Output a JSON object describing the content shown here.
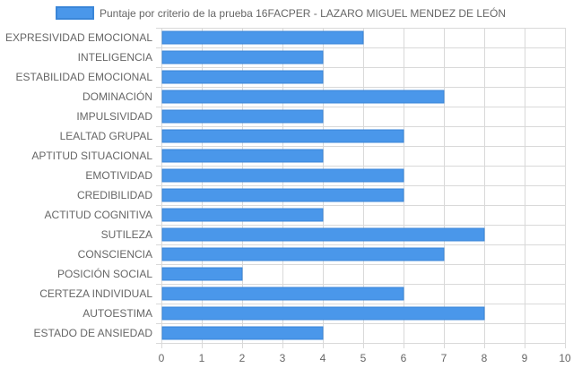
{
  "chart_data": {
    "type": "bar",
    "orientation": "horizontal",
    "legend_position": "top",
    "grid": true,
    "colors": {
      "bar_fill": "#4a97ea",
      "bar_stroke": "#3a86d8",
      "grid": "#d9d9d9",
      "text": "#666666"
    },
    "categories": [
      "EXPRESIVIDAD EMOCIONAL",
      "INTELIGENCIA",
      "ESTABILIDAD EMOCIONAL",
      "DOMINACIÓN",
      "IMPULSIVIDAD",
      "LEALTAD GRUPAL",
      "APTITUD SITUACIONAL",
      "EMOTIVIDAD",
      "CREDIBILIDAD",
      "ACTITUD COGNITIVA",
      "SUTILEZA",
      "CONSCIENCIA",
      "POSICIÓN SOCIAL",
      "CERTEZA INDIVIDUAL",
      "AUTOESTIMA",
      "ESTADO DE ANSIEDAD"
    ],
    "series": [
      {
        "name": "Puntaje por criterio de la prueba 16FACPER - LAZARO MIGUEL MENDEZ DE LEÓN",
        "values": [
          5,
          4,
          4,
          7,
          4,
          6,
          4,
          6,
          6,
          4,
          8,
          7,
          2,
          6,
          8,
          4
        ]
      }
    ],
    "xlim": [
      0,
      10
    ],
    "xticks": [
      "0",
      "1",
      "2",
      "3",
      "4",
      "5",
      "6",
      "7",
      "8",
      "9",
      "10"
    ]
  }
}
